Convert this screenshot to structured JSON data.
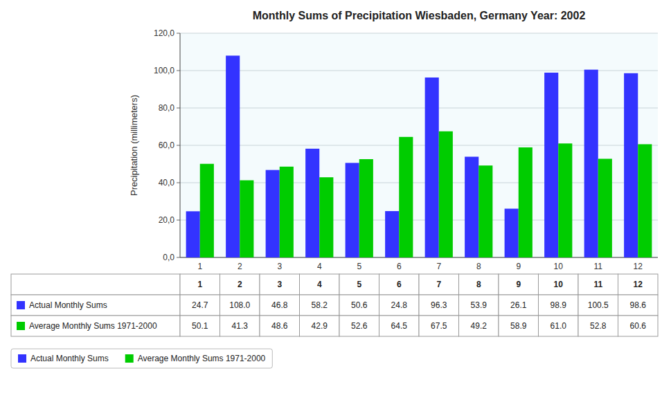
{
  "chart_data": {
    "type": "bar",
    "title": "Monthly Sums of Precipitation  Wiesbaden, Germany  Year: 2002",
    "y_label": "Precipitation (millimeters)",
    "categories": [
      "1",
      "2",
      "3",
      "4",
      "5",
      "6",
      "7",
      "8",
      "9",
      "10",
      "11",
      "12"
    ],
    "series": [
      {
        "name": "Actual Monthly Sums",
        "color": "#3333FF",
        "values": [
          24.7,
          108.0,
          46.8,
          58.2,
          50.6,
          24.8,
          96.3,
          53.9,
          26.1,
          98.9,
          100.5,
          98.6
        ],
        "value_labels": [
          "24.7",
          "108.0",
          "46.8",
          "58.2",
          "50.6",
          "24.8",
          "96.3",
          "53.9",
          "26.1",
          "98.9",
          "100.5",
          "98.6"
        ]
      },
      {
        "name": "Average Monthly Sums 1971-2000",
        "color": "#00CC00",
        "values": [
          50.1,
          41.3,
          48.6,
          42.9,
          52.6,
          64.5,
          67.5,
          49.2,
          58.9,
          61.0,
          52.8,
          60.6
        ],
        "value_labels": [
          "50.1",
          "41.3",
          "48.6",
          "42.9",
          "52.6",
          "64.5",
          "67.5",
          "49.2",
          "58.9",
          "61.0",
          "52.8",
          "60.6"
        ]
      }
    ],
    "ylim": [
      0,
      120
    ],
    "yticks": [
      {
        "value": 0,
        "label": "0,0"
      },
      {
        "value": 20,
        "label": "20,0"
      },
      {
        "value": 40,
        "label": "40,0"
      },
      {
        "value": 60,
        "label": "60,0"
      },
      {
        "value": 80,
        "label": "80,0"
      },
      {
        "value": 100,
        "label": "100,0"
      },
      {
        "value": 120,
        "label": "120,0"
      }
    ],
    "grid": true,
    "legend": "lower left"
  }
}
